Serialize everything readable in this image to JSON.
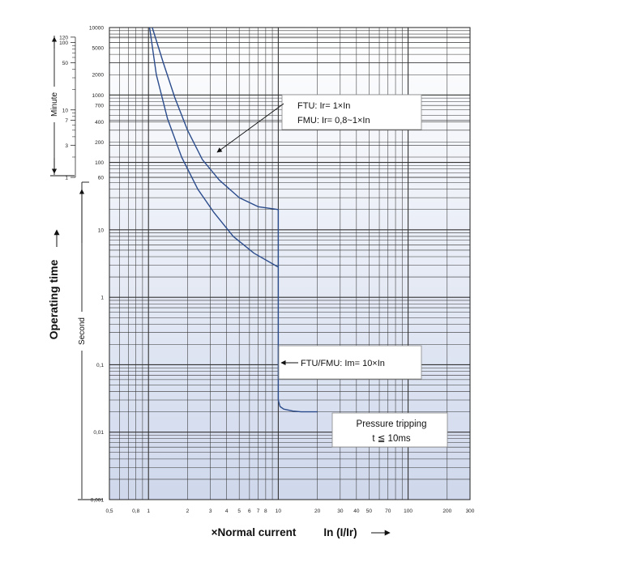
{
  "chart_data": {
    "type": "line",
    "title": "",
    "xlabel": "×Normal current",
    "xlabel_unit": "In (I/Ir)",
    "ylabel": "Operating time",
    "x_scale": "log",
    "y_scale": "log",
    "xlim": [
      0.5,
      300
    ],
    "ylim": [
      0.001,
      10000
    ],
    "x_tick_labels": [
      "0,5",
      "0,8",
      "1",
      "2",
      "3",
      "4",
      "5",
      "6",
      "7",
      "8",
      "10",
      "20",
      "30",
      "40",
      "50",
      "70",
      "100",
      "200",
      "300"
    ],
    "x_tick_values": [
      0.5,
      0.8,
      1,
      2,
      3,
      4,
      5,
      6,
      7,
      8,
      10,
      20,
      30,
      40,
      50,
      70,
      100,
      200,
      300
    ],
    "y_second_labels": [
      "0,001",
      "0,01",
      "0,1",
      "1",
      "10"
    ],
    "y_second_values": [
      0.001,
      0.01,
      0.1,
      1,
      10
    ],
    "y_second_axis_label": "Second",
    "y_top_labels": [
      "10000",
      "5000",
      "2000",
      "1000",
      "700",
      "400",
      "200",
      "100",
      "60"
    ],
    "y_top_values": [
      10000,
      5000,
      2000,
      1000,
      700,
      400,
      200,
      100,
      60
    ],
    "y_minute_labels": [
      "120",
      "100",
      "50",
      "10",
      "7",
      "3",
      "1"
    ],
    "y_minute_values": [
      120,
      100,
      50,
      10,
      7,
      3,
      1
    ],
    "y_minute_axis_label": "Minute",
    "grid": true,
    "series": [
      {
        "x": [
          1.07,
          1.3,
          1.6,
          2,
          2.6,
          3.5,
          5,
          7,
          10
        ],
        "y": [
          10000,
          3000,
          900,
          300,
          110,
          55,
          30,
          22,
          20
        ]
      },
      {
        "x": [
          1.02,
          1.15,
          1.4,
          1.8,
          2.4,
          3.2,
          4.5,
          6.5,
          10
        ],
        "y": [
          10000,
          2000,
          450,
          120,
          40,
          18,
          8,
          4.5,
          2.8
        ]
      },
      {
        "x": [
          10,
          10,
          10.3,
          11,
          13,
          15,
          20
        ],
        "y": [
          20,
          0.03,
          0.024,
          0.022,
          0.0205,
          0.02,
          0.02
        ]
      }
    ],
    "annotations": {
      "ftu_line1": "FTU: Ir= 1×In",
      "ftu_line2": "FMU: Ir= 0,8~1×In",
      "inst": "FTU/FMU: Im= 10×In",
      "pressure_line1": "Pressure tripping",
      "pressure_line2": "t ≦ 10ms"
    },
    "colors": {
      "curve": "#2b4c8c",
      "grid": "#333333",
      "plot_top": "#ffffff",
      "plot_bottom": "#cfd8ec"
    }
  }
}
